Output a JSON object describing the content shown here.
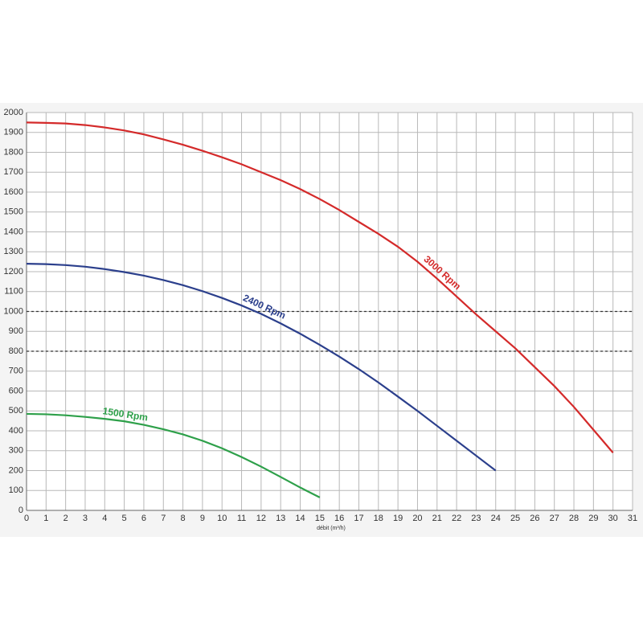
{
  "chart_data": {
    "type": "line",
    "x_label": "débit (m³/h)",
    "x": [
      0,
      1,
      2,
      3,
      4,
      5,
      6,
      7,
      8,
      9,
      10,
      11,
      12,
      13,
      14,
      15,
      16,
      17,
      18,
      19,
      20,
      21,
      22,
      23,
      24,
      25,
      26,
      27,
      28,
      29,
      30
    ],
    "series": [
      {
        "name": "3000 Rpm",
        "color": "#d42a2a",
        "values": [
          1950,
          1948,
          1945,
          1937,
          1925,
          1910,
          1890,
          1865,
          1838,
          1808,
          1775,
          1740,
          1700,
          1660,
          1615,
          1565,
          1510,
          1450,
          1390,
          1325,
          1250,
          1165,
          1075,
          985,
          900,
          815,
          720,
          625,
          520,
          405,
          290
        ]
      },
      {
        "name": "2400 Rpm",
        "color": "#2b3f8c",
        "values": [
          1240,
          1238,
          1233,
          1225,
          1213,
          1198,
          1180,
          1158,
          1132,
          1102,
          1068,
          1030,
          988,
          940,
          888,
          832,
          773,
          710,
          643,
          572,
          500,
          425,
          350,
          275,
          200,
          null,
          null,
          null,
          null,
          null,
          null
        ]
      },
      {
        "name": "1500 Rpm",
        "color": "#2ea04a",
        "values": [
          485,
          483,
          478,
          470,
          460,
          448,
          430,
          408,
          382,
          350,
          312,
          268,
          220,
          168,
          115,
          65,
          null,
          null,
          null,
          null,
          null,
          null,
          null,
          null,
          null,
          null,
          null,
          null,
          null,
          null,
          null
        ]
      }
    ],
    "hlines": [
      1000,
      800
    ],
    "xlim": [
      0,
      31
    ],
    "ylim": [
      0,
      2000
    ],
    "xticks": [
      0,
      1,
      2,
      3,
      4,
      5,
      6,
      7,
      8,
      9,
      10,
      11,
      12,
      13,
      14,
      15,
      16,
      17,
      18,
      19,
      20,
      21,
      22,
      23,
      24,
      25,
      26,
      27,
      28,
      29,
      30,
      31
    ],
    "yticks": [
      0,
      100,
      200,
      300,
      400,
      500,
      600,
      700,
      800,
      900,
      1000,
      1100,
      1200,
      1300,
      1400,
      1500,
      1600,
      1700,
      1800,
      1900,
      2000
    ],
    "grid": true
  }
}
